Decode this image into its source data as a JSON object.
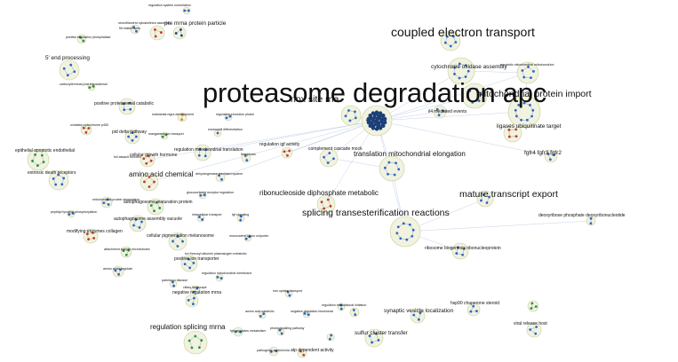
{
  "labels": {
    "L0": "regulation system surmelation",
    "L1": "neurofilament cytoskeleton assembly",
    "L2": "fill related seek",
    "L3": "pre mrna protein particle",
    "L4": "positive regulation phosphatase",
    "L5": "5' end processing",
    "L6": "carboxyterminal post translational",
    "L7": "positive proteasomal catabolic",
    "L8": "substantia nigra development",
    "L9": "regulation execution phase",
    "L10": "oxidation cytochrome p450",
    "L11": "pid delta pathway",
    "L12": "manganese ion transport",
    "L13": "eosinophil differentiation",
    "L14": "regulation igf activity",
    "L15": "regulation mitochondrial translation",
    "L16": "cellular growth hormone",
    "L17": "ferroptosis",
    "L18": "full assault function",
    "L19": "epithelial apoptotic endothelial",
    "L20": "complement cascade mock",
    "L21": "translation mitochondrial elongation",
    "L22": "extrinsic death receptors",
    "L23": "amino acid chemical",
    "L24": "dehydrogenase mediated system",
    "L25": "ribonucleoside diphosphate metabolic",
    "L26": "glucocorticoid receptor regulation",
    "L27": "mitochondrial protein degradation",
    "L28": "autophagosome maturation protein",
    "L29": "peptidyl tyrosine phosphorylation",
    "L30": "intracellular transport",
    "L31": "tgf signaling",
    "L32": "autophagosome assembly vacuole",
    "L33": "modifying enzymes collagen",
    "L34": "cellular pigmentation melanosome",
    "L35": "monovalent cation uniporter",
    "L36": "attachment spindle microtubules",
    "L37": "positive ion transporter",
    "L38": "bcl threonyl albumin plasmalogen metabolic",
    "L39": "amino acids regulate",
    "L40": "regulation mitochondrial membrane",
    "L41": "parkinson disease",
    "L42": "ciliary landscape",
    "L43": "negative regulation mrna",
    "L44": "iron uptake transport",
    "L45": "coupled electron transport",
    "L46": "cytochrome oxidase assembly",
    "L47": "apoptotic mitochondrial mitochondrion",
    "L48": "proteasome degradation apc",
    "L49": "nox site rna",
    "L50": "mitochondrial protein import",
    "L51": "il4 mediated events",
    "L52": "ligases ubiquitinate target",
    "L53": "fgfr4 fgfr3 fgfr2",
    "L54": "mature transcript export",
    "L55": "splicing transesterification reactions",
    "L56": "deoxyribose phosphate deoxyribonucleotide",
    "L57": "ribosome biogenesis ribonucleoprotein",
    "L58": "hsp90 chaperone steroid",
    "L59": "regulation translational initiation",
    "L60": "amino acid catabolic",
    "L61": "negative regulation biomineral",
    "L62": "synaptic vesicle localization",
    "L63": "viral release host",
    "L64": "regulation splicing mrna",
    "L65": "fgfr regulates metabolism",
    "L66": "photosignalling pathway",
    "L67": "sulfur cluster transfer",
    "L68": "pathogenic escherichia",
    "L69": "atp dependent activity"
  },
  "colors": {
    "node_blue": "#2f66c2",
    "node_dark": "#1c3f78",
    "node_red": "#b8402f",
    "node_green": "#2f8f4a",
    "node_orange": "#d08a2c",
    "halo_fill": "#f1f3e0",
    "halo_stroke": "#c9cc98",
    "edge": "#9bb4d8"
  }
}
